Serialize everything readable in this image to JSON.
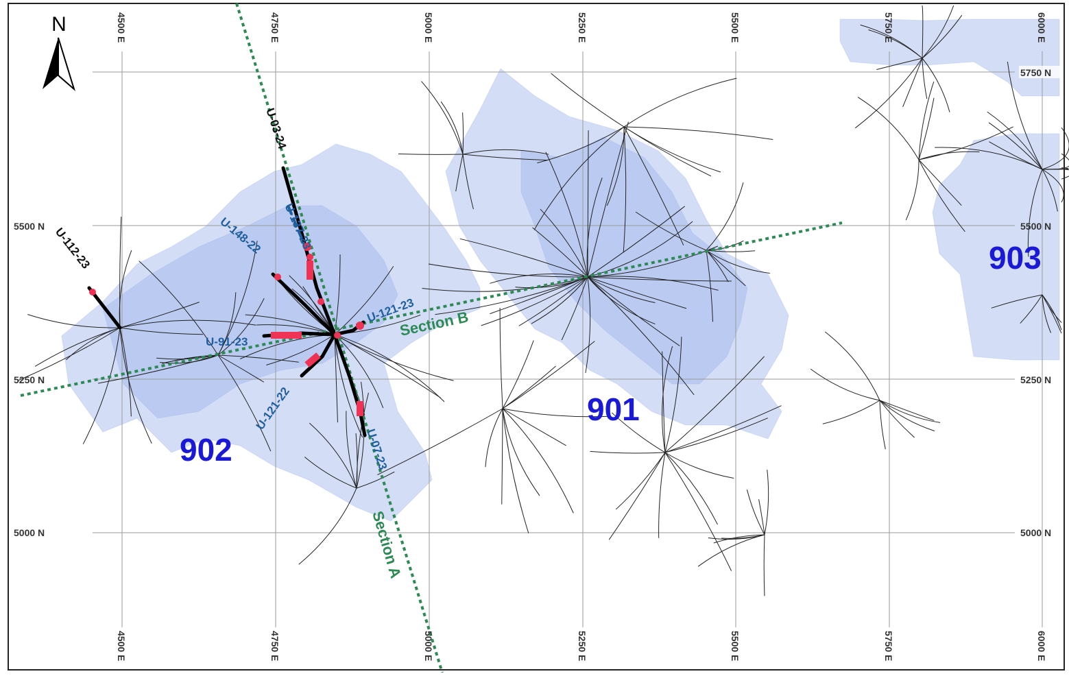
{
  "north_arrow": {
    "label": "N",
    "icon": "north-arrow-icon"
  },
  "grid": {
    "easting_labels": [
      "4500 E",
      "4750 E",
      "5000 E",
      "5250 E",
      "5500 E",
      "5750 E",
      "6000 E"
    ],
    "northing_labels": [
      "5750 N",
      "5500 N",
      "5250 N",
      "5000 N"
    ]
  },
  "zones": [
    {
      "label": "902"
    },
    {
      "label": "901"
    },
    {
      "label": "903"
    }
  ],
  "sections": [
    {
      "label": "Section A"
    },
    {
      "label": "Section B"
    }
  ],
  "drill_holes": [
    {
      "label": "U-03-24"
    },
    {
      "label": "U-112-23"
    },
    {
      "label": "U-148-22"
    },
    {
      "label": "U-137-23"
    },
    {
      "label": "U-121-23"
    },
    {
      "label": "U-91-23"
    },
    {
      "label": "U-121-22"
    },
    {
      "label": "U-07-23"
    }
  ],
  "colors": {
    "zone_label": "#1a1ad6",
    "section_line": "#2d8a55",
    "mineralized_shape": "#9db3ea",
    "assay_intercept": "#ee3355",
    "highlighted_hole_label": "#1f5f9e"
  }
}
